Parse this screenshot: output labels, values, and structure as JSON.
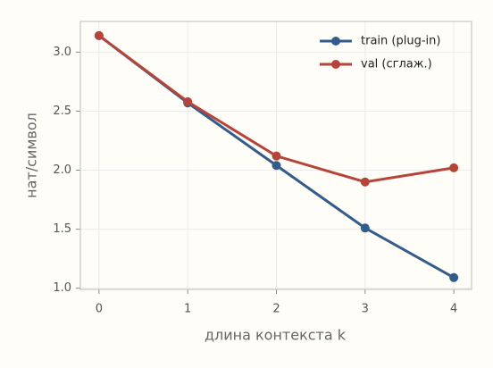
{
  "chart_data": {
    "type": "line",
    "x": [
      0,
      1,
      2,
      3,
      4
    ],
    "series": [
      {
        "name": "train (plug-in)",
        "color": "#335c8a",
        "values": [
          3.14,
          2.57,
          2.04,
          1.51,
          1.09
        ]
      },
      {
        "name": "val (сглаж.)",
        "color": "#b5453a",
        "values": [
          3.14,
          2.58,
          2.12,
          1.9,
          2.02
        ]
      }
    ],
    "xlabel": "длина контекста k",
    "ylabel": "нат/символ",
    "xlim": [
      -0.21,
      4.2
    ],
    "xticks": [
      0,
      1,
      2,
      3,
      4
    ],
    "ylim": [
      0.99,
      3.26
    ],
    "yticks": [
      {
        "value": 1,
        "label": "1.0"
      },
      {
        "value": 1.5,
        "label": "1.5"
      },
      {
        "value": 2,
        "label": "2.0"
      },
      {
        "value": 2.5,
        "label": "2.5"
      },
      {
        "value": 3,
        "label": "3.0"
      }
    ],
    "grid": true,
    "legend": "upper right"
  }
}
